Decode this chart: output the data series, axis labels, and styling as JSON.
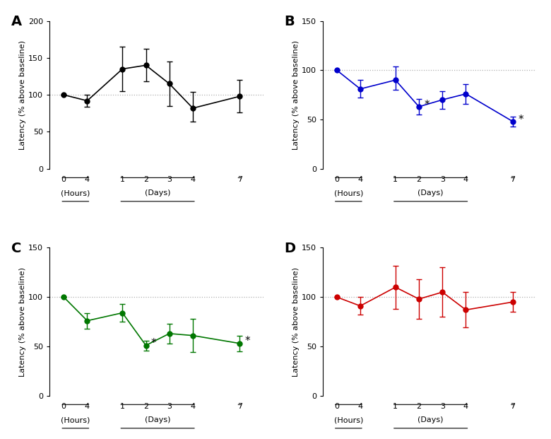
{
  "panels": [
    {
      "label": "A",
      "color": "#000000",
      "ylim": [
        0,
        200
      ],
      "yticks": [
        0,
        50,
        100,
        150,
        200
      ],
      "y": [
        100,
        92,
        135,
        140,
        115,
        82,
        98
      ],
      "yerr_lo": [
        0,
        8,
        30,
        22,
        30,
        18,
        22
      ],
      "yerr_hi": [
        0,
        8,
        30,
        22,
        30,
        22,
        22
      ],
      "asterisk": [
        false,
        false,
        false,
        false,
        false,
        false,
        false
      ]
    },
    {
      "label": "B",
      "color": "#0000CC",
      "ylim": [
        0,
        150
      ],
      "yticks": [
        0,
        50,
        100,
        150
      ],
      "y": [
        100,
        81,
        90,
        63,
        70,
        76,
        48
      ],
      "yerr_lo": [
        0,
        9,
        10,
        8,
        9,
        10,
        5
      ],
      "yerr_hi": [
        0,
        9,
        14,
        8,
        9,
        10,
        5
      ],
      "asterisk": [
        false,
        false,
        false,
        true,
        false,
        false,
        true
      ]
    },
    {
      "label": "C",
      "color": "#007700",
      "ylim": [
        0,
        150
      ],
      "yticks": [
        0,
        50,
        100,
        150
      ],
      "y": [
        100,
        76,
        84,
        51,
        63,
        61,
        53
      ],
      "yerr_lo": [
        0,
        8,
        9,
        5,
        10,
        17,
        8
      ],
      "yerr_hi": [
        0,
        8,
        9,
        5,
        10,
        17,
        8
      ],
      "asterisk": [
        false,
        false,
        false,
        true,
        false,
        false,
        true
      ]
    },
    {
      "label": "D",
      "color": "#CC0000",
      "ylim": [
        0,
        150
      ],
      "yticks": [
        0,
        50,
        100,
        150
      ],
      "y": [
        100,
        91,
        110,
        98,
        105,
        87,
        95
      ],
      "yerr_lo": [
        0,
        9,
        22,
        20,
        25,
        18,
        10
      ],
      "yerr_hi": [
        0,
        9,
        22,
        20,
        25,
        18,
        10
      ],
      "asterisk": [
        false,
        false,
        false,
        false,
        false,
        false,
        false
      ]
    }
  ],
  "x_positions": [
    0,
    1,
    2.5,
    3.5,
    4.5,
    5.5,
    7.5
  ],
  "tick_labels": [
    "0",
    "4",
    "1",
    "2",
    "3",
    "4",
    "7"
  ],
  "hours_seg": [
    0,
    1
  ],
  "days_seg": [
    2.5,
    5.5
  ],
  "week_seg": [
    7.5,
    7.5
  ],
  "hours_mid": 0.5,
  "days_mid": 4.0,
  "xlabel_hours_label": "(Hours)",
  "xlabel_days_label": "(Days)",
  "ylabel": "Latency (% above baseline)",
  "ref_line_y": 100,
  "ref_line_color": "#b0b0b0",
  "background": "#ffffff"
}
